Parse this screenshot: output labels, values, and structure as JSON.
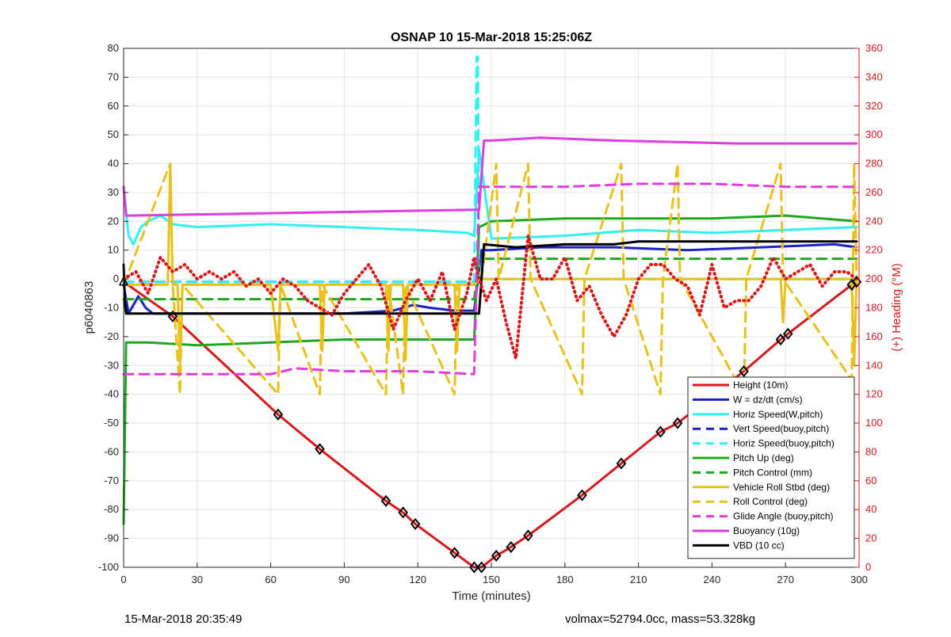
{
  "chart_data": {
    "type": "line",
    "title": "OSNAP 10 15-Mar-2018 15:25:06Z",
    "xlabel": "Time (minutes)",
    "ylabel": "p6040863",
    "y2label": "(+) Heading (°M)",
    "xlim": [
      0,
      300
    ],
    "ylim": [
      -100,
      80
    ],
    "y2lim": [
      0,
      360
    ],
    "xticks": [
      0,
      30,
      60,
      90,
      120,
      150,
      180,
      210,
      240,
      270,
      300
    ],
    "yticks": [
      -100,
      -90,
      -80,
      -70,
      -60,
      -50,
      -40,
      -30,
      -20,
      -10,
      0,
      10,
      20,
      30,
      40,
      50,
      60,
      70,
      80
    ],
    "y2ticks": [
      0,
      20,
      40,
      60,
      80,
      100,
      120,
      140,
      160,
      180,
      200,
      220,
      240,
      260,
      280,
      300,
      320,
      340,
      360
    ],
    "grid": true,
    "legend_position": "bottom-right",
    "series": [
      {
        "name": "Height (10m)",
        "color": "#d7191c",
        "style": "solid",
        "axis": "left",
        "x": [
          0,
          20,
          63,
          80,
          107,
          114,
          119,
          135,
          143,
          146,
          152,
          158,
          165,
          187,
          203,
          219,
          226,
          253,
          268,
          271,
          297,
          299
        ],
        "y": [
          -1,
          -13,
          -47,
          -59,
          -77,
          -81,
          -85,
          -95,
          -100,
          -100,
          -96,
          -93,
          -89,
          -75,
          -64,
          -53,
          -50,
          -32,
          -21,
          -19,
          -2,
          -1
        ]
      },
      {
        "name": "W = dz/dt (cm/s)",
        "color": "#1a22c4",
        "style": "solid",
        "axis": "left",
        "x": [
          0,
          2,
          6,
          9,
          12,
          30,
          60,
          90,
          110,
          118,
          125,
          135,
          140,
          143,
          146,
          150,
          170,
          200,
          230,
          260,
          290,
          299
        ],
        "y": [
          -2,
          -12,
          -6,
          -10,
          -12,
          -12,
          -12,
          -12,
          -11,
          -9,
          -10,
          -11,
          -11,
          -11,
          10,
          10,
          11,
          11,
          10,
          11,
          12,
          11
        ]
      },
      {
        "name": "Horiz Speed(W,pitch)",
        "color": "#2ff2ef",
        "style": "solid",
        "axis": "left",
        "x": [
          0,
          2,
          4,
          7,
          10,
          15,
          20,
          30,
          60,
          90,
          120,
          140,
          143,
          145,
          150,
          180,
          210,
          240,
          270,
          299
        ],
        "y": [
          32,
          15,
          12,
          18,
          20,
          22,
          19,
          18,
          19,
          18,
          17,
          16,
          15,
          45,
          14,
          15,
          17,
          16,
          17,
          18
        ]
      },
      {
        "name": "Vert Speed(buoy,pitch)",
        "color": "#1a22c4",
        "style": "dashed",
        "axis": "left",
        "x": [
          0,
          143,
          145,
          299
        ],
        "y": [
          -1,
          -1,
          0,
          0
        ]
      },
      {
        "name": "Horiz Speed(buoy,pitch)",
        "color": "#2ff2ef",
        "style": "dashed",
        "axis": "left",
        "x": [
          0,
          143,
          144,
          144.5,
          145,
          299
        ],
        "y": [
          -1,
          -1,
          77,
          77,
          0,
          0
        ]
      },
      {
        "name": "Pitch Up (deg)",
        "color": "#1fa81f",
        "style": "solid",
        "axis": "left",
        "x": [
          0,
          0.5,
          1,
          3,
          10,
          30,
          60,
          90,
          120,
          143,
          145,
          150,
          180,
          210,
          240,
          270,
          299
        ],
        "y": [
          -85,
          -55,
          -22,
          -22,
          -22,
          -23,
          -22,
          -21,
          -21,
          -21,
          18,
          20,
          21,
          21,
          21,
          22,
          20
        ]
      },
      {
        "name": "Pitch Control (mm)",
        "color": "#1fa81f",
        "style": "dashed",
        "axis": "left",
        "x": [
          0,
          143,
          145,
          299
        ],
        "y": [
          -7,
          -7,
          7,
          7
        ]
      },
      {
        "name": "Vehicle Roll Stbd (deg)",
        "color": "#e8c21a",
        "style": "solid",
        "axis": "left",
        "x": [
          0,
          18,
          19,
          20,
          22,
          23,
          24,
          60,
          63,
          64,
          80,
          81,
          82,
          107,
          108,
          109,
          114,
          115,
          116,
          135,
          136,
          137,
          143,
          146,
          160,
          180,
          200,
          210,
          250,
          268,
          269,
          270,
          297,
          298,
          299
        ],
        "y": [
          -2,
          -2,
          40,
          -2,
          -2,
          -30,
          -2,
          -2,
          -25,
          -2,
          -2,
          -25,
          -2,
          -2,
          -25,
          -2,
          -2,
          -28,
          -2,
          -2,
          -25,
          -2,
          -2,
          0,
          0,
          0,
          0,
          0,
          0,
          0,
          -15,
          0,
          0,
          -30,
          0
        ]
      },
      {
        "name": "Roll Control (deg)",
        "color": "#e8c21a",
        "style": "dashed",
        "axis": "left",
        "x": [
          0,
          19,
          20,
          23,
          24,
          63,
          64,
          80,
          81,
          107,
          108,
          114,
          115,
          135,
          136,
          143,
          146,
          152,
          153,
          165,
          166,
          187,
          188,
          203,
          204,
          219,
          220,
          226,
          227,
          253,
          254,
          268,
          269,
          297,
          298,
          299
        ],
        "y": [
          -2,
          40,
          -2,
          -40,
          -2,
          -40,
          -2,
          -40,
          -2,
          -40,
          -2,
          -40,
          -2,
          -40,
          -2,
          -2,
          0,
          40,
          0,
          40,
          0,
          -40,
          0,
          40,
          0,
          -40,
          0,
          40,
          0,
          -40,
          0,
          40,
          0,
          -35,
          40,
          0
        ]
      },
      {
        "name": "Glide Angle (buoy,pitch)",
        "color": "#e03de0",
        "style": "dashed",
        "axis": "left",
        "x": [
          0,
          10,
          30,
          60,
          70,
          90,
          120,
          143,
          145,
          150,
          180,
          210,
          240,
          270,
          299
        ],
        "y": [
          -33,
          -33,
          -33,
          -33,
          -31,
          -32,
          -32,
          -33,
          32,
          32,
          32,
          33,
          33,
          32,
          32
        ]
      },
      {
        "name": "Buoyancy (10g)",
        "color": "#e03de0",
        "style": "solid",
        "axis": "left",
        "x": [
          0,
          1,
          2,
          143,
          145,
          147,
          150,
          170,
          200,
          250,
          299
        ],
        "y": [
          32,
          22,
          22,
          24,
          24,
          48,
          48,
          49,
          48,
          47,
          47
        ]
      },
      {
        "name": "VBD (10 cc)",
        "color": "#000000",
        "style": "solid",
        "axis": "left",
        "x": [
          0,
          0.5,
          1,
          2,
          143,
          145,
          147,
          160,
          180,
          200,
          210,
          299
        ],
        "y": [
          5,
          -8,
          -12,
          -12,
          -12,
          -12,
          12,
          11,
          12,
          12,
          13,
          13
        ]
      },
      {
        "name": "",
        "color": "#d7191c",
        "style": "dotted",
        "axis": "right",
        "note": "heading",
        "x": [
          0,
          5,
          10,
          15,
          20,
          25,
          30,
          35,
          40,
          45,
          50,
          55,
          60,
          65,
          70,
          75,
          80,
          85,
          90,
          95,
          100,
          105,
          110,
          115,
          120,
          125,
          130,
          135,
          140,
          143,
          145,
          148,
          152,
          156,
          160,
          165,
          170,
          175,
          180,
          185,
          190,
          195,
          200,
          205,
          210,
          215,
          220,
          225,
          230,
          235,
          240,
          245,
          250,
          255,
          260,
          265,
          270,
          275,
          280,
          285,
          290,
          295,
          299
        ],
        "y": [
          200,
          205,
          190,
          215,
          205,
          210,
          200,
          205,
          200,
          205,
          195,
          200,
          190,
          200,
          195,
          185,
          180,
          175,
          190,
          200,
          210,
          195,
          165,
          185,
          200,
          185,
          205,
          165,
          190,
          215,
          200,
          185,
          200,
          170,
          145,
          230,
          200,
          200,
          215,
          185,
          195,
          175,
          160,
          175,
          200,
          210,
          210,
          200,
          195,
          175,
          210,
          180,
          185,
          185,
          195,
          215,
          200,
          205,
          210,
          195,
          205,
          205,
          200
        ]
      }
    ]
  },
  "footer": {
    "timestamp": "15-Mar-2018 20:35:49",
    "volmax_mass": "volmax=52794.0cc, mass=53.328kg"
  }
}
